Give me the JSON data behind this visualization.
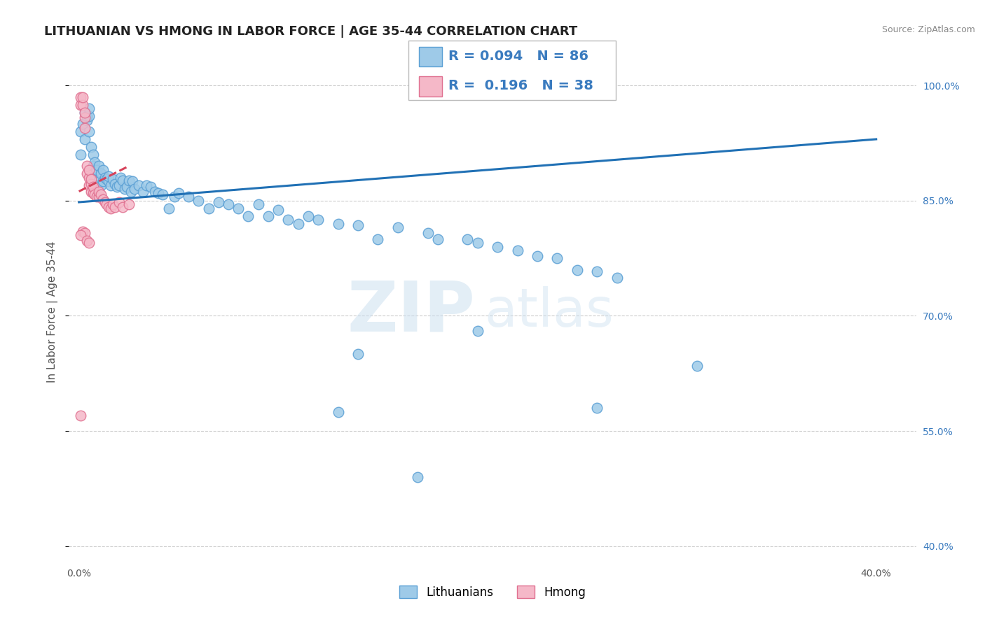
{
  "title": "LITHUANIAN VS HMONG IN LABOR FORCE | AGE 35-44 CORRELATION CHART",
  "source": "Source: ZipAtlas.com",
  "ylabel": "In Labor Force | Age 35-44",
  "xlim": [
    -0.005,
    0.42
  ],
  "ylim": [
    0.38,
    1.03
  ],
  "x_ticks": [
    0.0,
    0.05,
    0.1,
    0.15,
    0.2,
    0.25,
    0.3,
    0.35,
    0.4
  ],
  "y_ticks": [
    0.4,
    0.55,
    0.7,
    0.85,
    1.0
  ],
  "y_tick_labels": [
    "40.0%",
    "55.0%",
    "70.0%",
    "85.0%",
    "100.0%"
  ],
  "legend_entries": [
    {
      "label": "Lithuanians",
      "color": "#9ecae8",
      "edge": "#5a9fd4",
      "R": "0.094",
      "N": "86"
    },
    {
      "label": "Hmong",
      "color": "#f5b8c8",
      "edge": "#e07090",
      "R": "0.196",
      "N": "38"
    }
  ],
  "blue_scatter_x": [
    0.001,
    0.001,
    0.002,
    0.003,
    0.003,
    0.004,
    0.004,
    0.005,
    0.005,
    0.005,
    0.006,
    0.006,
    0.007,
    0.007,
    0.008,
    0.008,
    0.009,
    0.009,
    0.01,
    0.01,
    0.011,
    0.011,
    0.012,
    0.012,
    0.013,
    0.014,
    0.015,
    0.015,
    0.016,
    0.017,
    0.018,
    0.019,
    0.02,
    0.021,
    0.022,
    0.023,
    0.024,
    0.025,
    0.026,
    0.027,
    0.028,
    0.03,
    0.032,
    0.034,
    0.036,
    0.038,
    0.04,
    0.042,
    0.045,
    0.048,
    0.05,
    0.055,
    0.06,
    0.065,
    0.07,
    0.075,
    0.08,
    0.085,
    0.09,
    0.095,
    0.1,
    0.105,
    0.11,
    0.115,
    0.12,
    0.13,
    0.14,
    0.15,
    0.16,
    0.175,
    0.18,
    0.195,
    0.2,
    0.21,
    0.22,
    0.23,
    0.24,
    0.25,
    0.26,
    0.27,
    0.14,
    0.2,
    0.26,
    0.13,
    0.17,
    0.31
  ],
  "blue_scatter_y": [
    0.91,
    0.94,
    0.95,
    0.93,
    0.965,
    0.955,
    0.96,
    0.94,
    0.96,
    0.97,
    0.88,
    0.92,
    0.895,
    0.91,
    0.89,
    0.9,
    0.87,
    0.89,
    0.875,
    0.895,
    0.87,
    0.885,
    0.875,
    0.89,
    0.88,
    0.878,
    0.875,
    0.882,
    0.87,
    0.878,
    0.872,
    0.868,
    0.87,
    0.88,
    0.876,
    0.865,
    0.868,
    0.876,
    0.862,
    0.875,
    0.865,
    0.87,
    0.862,
    0.87,
    0.868,
    0.862,
    0.86,
    0.858,
    0.84,
    0.855,
    0.86,
    0.855,
    0.85,
    0.84,
    0.848,
    0.845,
    0.84,
    0.83,
    0.845,
    0.83,
    0.838,
    0.825,
    0.82,
    0.83,
    0.825,
    0.82,
    0.818,
    0.8,
    0.815,
    0.808,
    0.8,
    0.8,
    0.795,
    0.79,
    0.785,
    0.778,
    0.775,
    0.76,
    0.758,
    0.75,
    0.65,
    0.68,
    0.58,
    0.575,
    0.49,
    0.635
  ],
  "pink_scatter_x": [
    0.001,
    0.001,
    0.002,
    0.002,
    0.003,
    0.003,
    0.003,
    0.004,
    0.004,
    0.005,
    0.005,
    0.005,
    0.006,
    0.006,
    0.006,
    0.007,
    0.007,
    0.008,
    0.009,
    0.01,
    0.01,
    0.011,
    0.012,
    0.013,
    0.014,
    0.015,
    0.016,
    0.017,
    0.018,
    0.02,
    0.022,
    0.025,
    0.002,
    0.003,
    0.001,
    0.004,
    0.005,
    0.001
  ],
  "pink_scatter_y": [
    0.975,
    0.985,
    0.975,
    0.985,
    0.945,
    0.958,
    0.965,
    0.885,
    0.895,
    0.87,
    0.88,
    0.89,
    0.862,
    0.872,
    0.878,
    0.86,
    0.868,
    0.858,
    0.855,
    0.855,
    0.862,
    0.858,
    0.852,
    0.848,
    0.845,
    0.842,
    0.84,
    0.845,
    0.842,
    0.848,
    0.842,
    0.845,
    0.81,
    0.808,
    0.805,
    0.798,
    0.795,
    0.57
  ],
  "blue_line_x": [
    0.0,
    0.4
  ],
  "blue_line_y": [
    0.848,
    0.93
  ],
  "pink_line_x": [
    0.0,
    0.025
  ],
  "pink_line_y": [
    0.862,
    0.895
  ],
  "bg_color": "#ffffff",
  "blue_color": "#9ecae8",
  "blue_edge": "#5a9fd4",
  "pink_color": "#f5b8c8",
  "pink_edge": "#e07090",
  "blue_line_color": "#2171b5",
  "pink_line_color": "#d6425a",
  "legend_R_color": "#3a7bbf",
  "title_fontsize": 13,
  "axis_label_fontsize": 11,
  "tick_fontsize": 10,
  "legend_fontsize": 14
}
